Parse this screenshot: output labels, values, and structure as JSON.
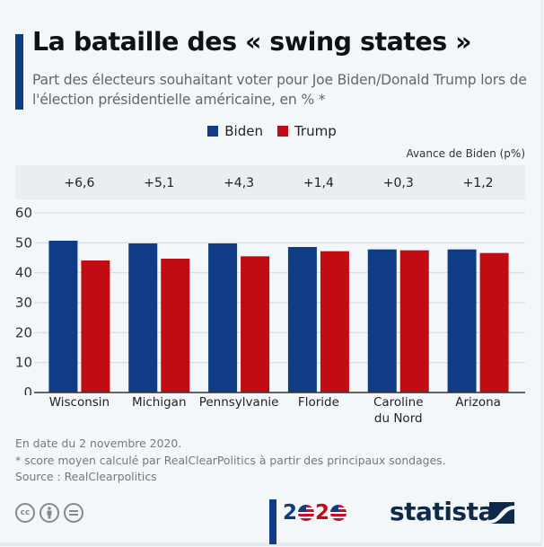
{
  "header": {
    "title": "La bataille des « swing states »",
    "subtitle": "Part des électeurs souhaitant voter pour Joe Biden/Donald Trump lors de l'élection présidentielle américaine, en % *"
  },
  "legend": [
    {
      "name": "Biden",
      "color": "#0f3c84"
    },
    {
      "name": "Trump",
      "color": "#c20c14"
    }
  ],
  "lead": {
    "label": "Avance de Biden (p%)",
    "values": [
      "+6,6",
      "+5,1",
      "+4,3",
      "+1,4",
      "+0,3",
      "+1,2"
    ]
  },
  "chart_data": {
    "type": "bar",
    "title": "La bataille des « swing states »",
    "categories": [
      "Wisconsin",
      "Michigan",
      "Pennsylvanie",
      "Floride",
      "Caroline du Nord",
      "Arizona"
    ],
    "category_lines": [
      [
        "Wisconsin"
      ],
      [
        "Michigan"
      ],
      [
        "Pennsylvanie"
      ],
      [
        "Floride"
      ],
      [
        "Caroline",
        "du Nord"
      ],
      [
        "Arizona"
      ]
    ],
    "series": [
      {
        "name": "Biden",
        "color": "#0f3c84",
        "values": [
          50.7,
          49.8,
          49.8,
          48.6,
          47.8,
          47.8
        ]
      },
      {
        "name": "Trump",
        "color": "#c20c14",
        "values": [
          44.1,
          44.7,
          45.5,
          47.2,
          47.5,
          46.6
        ]
      }
    ],
    "xlabel": "",
    "ylabel": "",
    "ylim": [
      0,
      60
    ],
    "yticks": [
      0,
      10,
      20,
      30,
      40,
      50,
      60
    ],
    "grid": true,
    "legend_position": "top-center"
  },
  "footer": {
    "notes": [
      "En date du 2 novembre 2020.",
      "* score moyen calculé par RealClearPolitics à partir des principaux sondages.",
      "Source : RealClearpolitics"
    ],
    "license_icons": [
      "cc-icon",
      "attribution-icon",
      "no-derivatives-icon"
    ],
    "logo_2020": {
      "digit_a": "2",
      "digit_b": "2"
    },
    "brand": "statista"
  }
}
